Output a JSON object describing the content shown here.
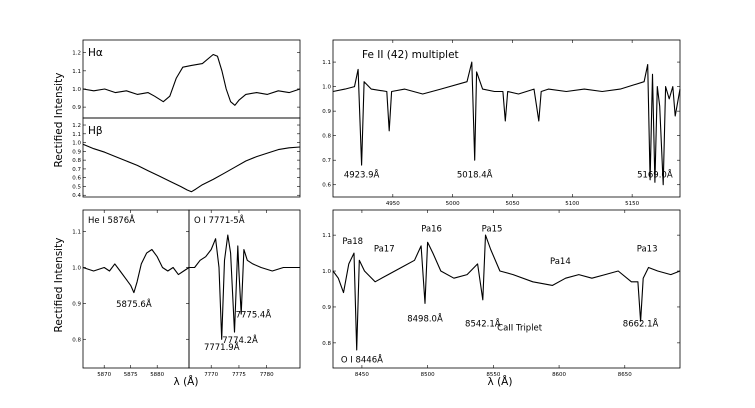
{
  "figure": {
    "ylabel_top": "Rectified Intensity",
    "ylabel_bottom": "Rectified Intensity",
    "xlabel": "λ (Å)"
  },
  "chart_data": [
    {
      "id": "halpha",
      "type": "line",
      "title": "Hα",
      "ylim": [
        0.84,
        1.27
      ],
      "yticks": [
        0.9,
        1.0,
        1.1,
        1.2
      ],
      "ytick_labels": [
        "0.9",
        "1.0",
        "1.1",
        "1.2"
      ],
      "x": [
        0,
        0.05,
        0.1,
        0.15,
        0.2,
        0.25,
        0.3,
        0.33,
        0.37,
        0.4,
        0.43,
        0.46,
        0.5,
        0.55,
        0.6,
        0.62,
        0.64,
        0.66,
        0.68,
        0.7,
        0.72,
        0.75,
        0.8,
        0.85,
        0.9,
        0.95,
        1
      ],
      "y": [
        1.0,
        0.99,
        1.0,
        0.98,
        0.99,
        0.97,
        0.98,
        0.96,
        0.93,
        0.96,
        1.06,
        1.12,
        1.13,
        1.14,
        1.19,
        1.18,
        1.1,
        1.0,
        0.93,
        0.91,
        0.94,
        0.97,
        0.98,
        0.97,
        0.99,
        0.98,
        1.0
      ]
    },
    {
      "id": "hbeta",
      "type": "line",
      "title": "Hβ",
      "ylim": [
        0.38,
        1.28
      ],
      "yticks": [
        0.4,
        0.5,
        0.6,
        0.7,
        0.8,
        0.9,
        1.0,
        1.1,
        1.2
      ],
      "ytick_labels": [
        "0.4",
        "0.5",
        "0.6",
        "0.7",
        "0.8",
        "0.9",
        "1.0",
        "1.1",
        "1.2"
      ],
      "x": [
        0,
        0.05,
        0.1,
        0.15,
        0.2,
        0.25,
        0.3,
        0.35,
        0.4,
        0.45,
        0.48,
        0.5,
        0.52,
        0.55,
        0.6,
        0.65,
        0.7,
        0.75,
        0.8,
        0.85,
        0.9,
        0.95,
        1
      ],
      "y": [
        0.98,
        0.93,
        0.89,
        0.84,
        0.79,
        0.74,
        0.68,
        0.62,
        0.56,
        0.5,
        0.46,
        0.44,
        0.47,
        0.52,
        0.58,
        0.65,
        0.72,
        0.79,
        0.84,
        0.88,
        0.92,
        0.94,
        0.95
      ]
    },
    {
      "id": "hei",
      "type": "line",
      "title": "He I 5876Å",
      "xlim": [
        5866,
        5886
      ],
      "xticks": [
        5870,
        5875,
        5880
      ],
      "xtick_labels": [
        "5870",
        "5875",
        "5880"
      ],
      "ylim": [
        0.72,
        1.16
      ],
      "yticks": [
        0.8,
        0.9,
        1.0,
        1.1
      ],
      "ytick_labels": [
        "0.8",
        "0.9",
        "1.0",
        "1.1"
      ],
      "x": [
        5866,
        5868,
        5870,
        5871,
        5872,
        5873,
        5874,
        5875,
        5875.6,
        5876.2,
        5877,
        5878,
        5879,
        5880,
        5881,
        5882,
        5883,
        5884,
        5885,
        5886
      ],
      "y": [
        1.0,
        0.99,
        1.0,
        0.99,
        1.01,
        0.99,
        0.97,
        0.95,
        0.93,
        0.96,
        1.01,
        1.04,
        1.05,
        1.03,
        1.0,
        0.99,
        1.0,
        0.98,
        0.99,
        1.0
      ],
      "annotations": [
        {
          "text": "5875.6Å",
          "x": 5875.6,
          "y": 0.89
        }
      ]
    },
    {
      "id": "oi",
      "type": "line",
      "title": "O I 7771-5Å",
      "xlim": [
        7766,
        7786
      ],
      "xticks": [
        7770,
        7775,
        7780
      ],
      "xtick_labels": [
        "7770",
        "7775",
        "7780"
      ],
      "ylim": [
        0.72,
        1.16
      ],
      "yticks": [
        0.8,
        0.9,
        1.0,
        1.1
      ],
      "ytick_labels": [
        "0.8",
        "0.9",
        "1.0",
        "1.1"
      ],
      "x": [
        7766,
        7767,
        7768,
        7769,
        7770,
        7770.8,
        7771.4,
        7771.9,
        7772.4,
        7773,
        7773.5,
        7774.2,
        7774.8,
        7775.0,
        7775.4,
        7775.9,
        7776.5,
        7777.5,
        7779,
        7781,
        7783,
        7786
      ],
      "y": [
        1.0,
        1.0,
        1.02,
        1.03,
        1.05,
        1.08,
        1.0,
        0.8,
        1.02,
        1.09,
        1.04,
        0.82,
        1.06,
        0.99,
        0.87,
        1.05,
        1.02,
        1.01,
        1.0,
        0.99,
        1.0,
        1.0
      ],
      "annotations": [
        {
          "text": "7771.9Å",
          "x": 7771.9,
          "y": 0.77
        },
        {
          "text": "7774.2Å",
          "x": 7775.2,
          "y": 0.79
        },
        {
          "text": "7775.4Å",
          "x": 7777.6,
          "y": 0.86
        }
      ]
    },
    {
      "id": "feii",
      "type": "line",
      "title": "Fe II (42) multiplet",
      "xlim": [
        4900,
        5190
      ],
      "xticks": [
        4950,
        5000,
        5050,
        5100,
        5150
      ],
      "xtick_labels": [
        "4950",
        "5000",
        "5050",
        "5100",
        "5150"
      ],
      "ylim": [
        0.55,
        1.19
      ],
      "yticks": [
        0.6,
        0.7,
        0.8,
        0.9,
        1.0,
        1.1
      ],
      "ytick_labels": [
        "0.6",
        "0.7",
        "0.8",
        "0.9",
        "1.0",
        "1.1"
      ],
      "x": [
        4900,
        4910,
        4918,
        4921,
        4923.9,
        4926,
        4932,
        4945,
        4947,
        4949,
        4960,
        4975,
        4990,
        5012,
        5016,
        5018.4,
        5020,
        5025,
        5035,
        5042,
        5044,
        5046,
        5055,
        5068,
        5072,
        5074,
        5080,
        5095,
        5110,
        5125,
        5140,
        5160,
        5163,
        5165,
        5167,
        5169,
        5171,
        5173,
        5176,
        5178,
        5181,
        5184,
        5186,
        5190
      ],
      "y": [
        0.98,
        0.99,
        1.0,
        1.07,
        0.68,
        1.02,
        0.99,
        0.98,
        0.82,
        0.98,
        0.99,
        0.97,
        0.99,
        1.02,
        1.1,
        0.7,
        1.06,
        0.99,
        0.98,
        0.98,
        0.86,
        0.98,
        0.97,
        0.99,
        0.86,
        0.98,
        0.99,
        0.98,
        0.99,
        0.98,
        0.99,
        1.02,
        1.09,
        0.62,
        1.05,
        0.61,
        1.0,
        0.92,
        0.6,
        1.0,
        0.95,
        1.0,
        0.88,
        0.99
      ],
      "annotations": [
        {
          "text": "4923.9Å",
          "x": 4923.9,
          "y": 0.63
        },
        {
          "text": "5018.4Å",
          "x": 5018.4,
          "y": 0.63
        },
        {
          "text": "5169.0Å",
          "x": 5169.0,
          "y": 0.63
        }
      ]
    },
    {
      "id": "pa",
      "type": "line",
      "title": "",
      "xlim": [
        4428,
        4692
      ],
      "xticks": [
        4450,
        4500,
        4550,
        4600,
        4650
      ],
      "xtick_labels": [
        "8450",
        "8500",
        "8550",
        "8600",
        "8650"
      ],
      "ylim": [
        0.73,
        1.17
      ],
      "yticks": [
        0.8,
        0.9,
        1.0,
        1.1
      ],
      "ytick_labels": [
        "0.8",
        "0.9",
        "1.0",
        "1.1"
      ],
      "x": [
        4428,
        4432,
        4436,
        4440,
        4444,
        4446,
        4448,
        4452,
        4460,
        4470,
        4480,
        4490,
        4495,
        4498,
        4500,
        4504,
        4510,
        4520,
        4530,
        4538,
        4542,
        4544,
        4548,
        4555,
        4565,
        4580,
        4595,
        4605,
        4615,
        4625,
        4635,
        4645,
        4655,
        4660,
        4662,
        4664,
        4668,
        4675,
        4685,
        4692
      ],
      "y": [
        1.0,
        0.98,
        0.94,
        1.02,
        1.05,
        0.78,
        1.03,
        1.0,
        0.97,
        0.99,
        1.01,
        1.03,
        1.07,
        0.91,
        1.08,
        1.05,
        1.0,
        0.98,
        0.99,
        1.02,
        0.92,
        1.1,
        1.06,
        1.0,
        0.99,
        0.97,
        0.96,
        0.98,
        0.99,
        0.98,
        0.99,
        1.0,
        0.97,
        0.97,
        0.86,
        0.98,
        1.01,
        1.0,
        0.99,
        1.0
      ],
      "annotations": [
        {
          "text": "Pa18",
          "x": 4443,
          "y": 1.075
        },
        {
          "text": "Pa17",
          "x": 4467,
          "y": 1.055
        },
        {
          "text": "Pa16",
          "x": 4503,
          "y": 1.11
        },
        {
          "text": "Pa15",
          "x": 4549,
          "y": 1.11
        },
        {
          "text": "Pa14",
          "x": 4601,
          "y": 1.02
        },
        {
          "text": "Pa13",
          "x": 4667,
          "y": 1.055
        },
        {
          "text": "O I 8446Å",
          "x": 4450,
          "y": 0.745
        },
        {
          "text": "8498.0Å",
          "x": 4498,
          "y": 0.86
        },
        {
          "text": "8542.1Å",
          "x": 4542,
          "y": 0.845
        },
        {
          "text": "8662.1Å",
          "x": 4662,
          "y": 0.845
        },
        {
          "text": "CaII Triplet",
          "x": 4570,
          "y": 0.835
        }
      ]
    }
  ]
}
